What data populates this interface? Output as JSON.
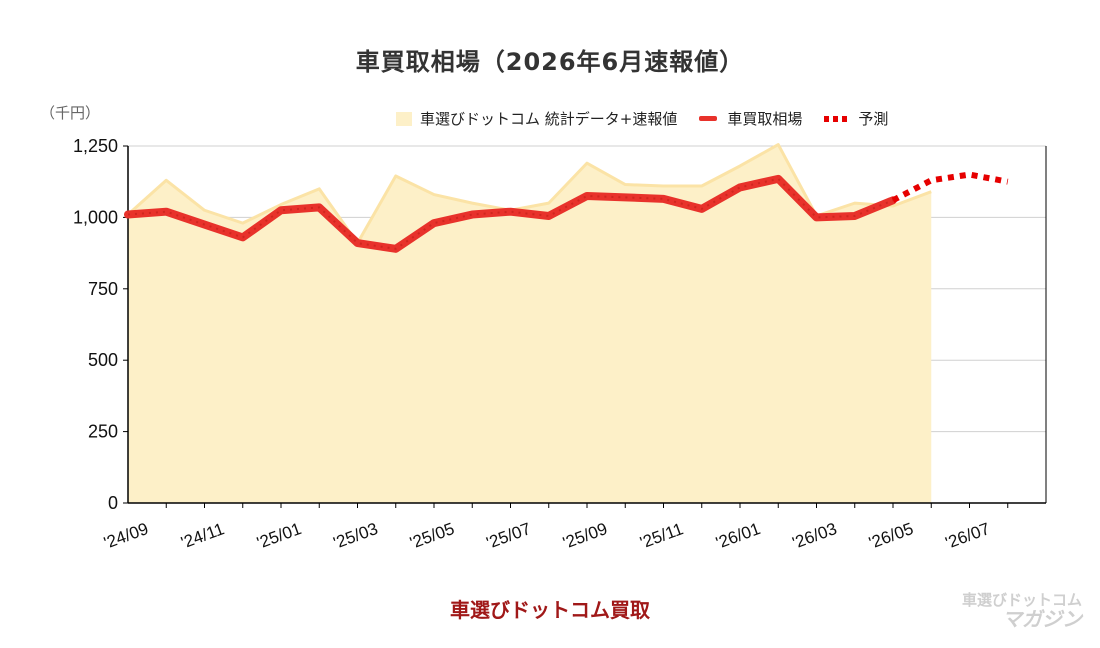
{
  "title": "車買取相場（2026年6月速報値）",
  "unit_label": "（千円）",
  "legend": {
    "area": "車選びドットコム 統計データ+速報値",
    "line": "車買取相場",
    "forecast": "予測"
  },
  "footer": "車選びドットコム買取",
  "watermark": {
    "line1": "車選びドットコム",
    "line2": "マガジン"
  },
  "colors": {
    "area": "#fdf0c8",
    "area_edge": "#fbe3a6",
    "line": "#e8322b",
    "forecast": "#e60000",
    "footer": "#a01818"
  },
  "chart_data": {
    "type": "line",
    "ylabel": "（千円）",
    "ylim": [
      0,
      1250
    ],
    "yticks": [
      "0",
      "250",
      "500",
      "750",
      "1,000",
      "1,250"
    ],
    "ytick_values": [
      0,
      250,
      500,
      750,
      1000,
      1250
    ],
    "x": [
      "'24/09",
      "'24/10",
      "'24/11",
      "'24/12",
      "'25/01",
      "'25/02",
      "'25/03",
      "'25/04",
      "'25/05",
      "'25/06",
      "'25/07",
      "'25/08",
      "'25/09",
      "'25/10",
      "'25/11",
      "'25/12",
      "'26/01",
      "'26/02",
      "'26/03",
      "'26/04",
      "'26/05",
      "'26/06",
      "'26/07",
      "'26/08"
    ],
    "xtick_labels": [
      "'24/09",
      "'24/11",
      "'25/01",
      "'25/03",
      "'25/05",
      "'25/07",
      "'25/09",
      "'25/11",
      "'26/01",
      "'26/03",
      "'26/05",
      "'26/07"
    ],
    "grid": true,
    "legend_position": "top-right",
    "series": [
      {
        "name": "車選びドットコム 統計データ+速報値",
        "kind": "area",
        "values": [
          1010,
          1130,
          1025,
          980,
          1045,
          1100,
          910,
          1145,
          1080,
          1050,
          1025,
          1050,
          1190,
          1115,
          1110,
          1110,
          1180,
          1255,
          1005,
          1050,
          1040,
          1090,
          null,
          null
        ]
      },
      {
        "name": "車買取相場",
        "kind": "line",
        "values": [
          1010,
          1020,
          975,
          930,
          1025,
          1035,
          910,
          890,
          980,
          1010,
          1020,
          1005,
          1075,
          1070,
          1065,
          1030,
          1105,
          1135,
          1000,
          1005,
          1060,
          null,
          null,
          null
        ]
      },
      {
        "name": "予測",
        "kind": "dotted",
        "values": [
          null,
          null,
          null,
          null,
          null,
          null,
          null,
          null,
          null,
          null,
          null,
          null,
          null,
          null,
          null,
          null,
          null,
          null,
          null,
          null,
          1060,
          1130,
          1150,
          1125
        ]
      }
    ]
  }
}
